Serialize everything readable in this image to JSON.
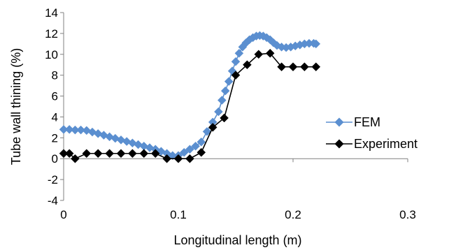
{
  "chart_data": {
    "type": "line",
    "title": "",
    "xlabel": "Longitudinal length (m)",
    "ylabel": "Tube wall thining (%)",
    "xlim": [
      0,
      0.3
    ],
    "ylim": [
      -4,
      14
    ],
    "xticks": [
      0,
      0.1,
      0.2,
      0.3
    ],
    "xtick_labels": [
      "0",
      "0.1",
      "0.2",
      "0.3"
    ],
    "yticks": [
      -4,
      -2,
      0,
      2,
      4,
      6,
      8,
      10,
      12,
      14
    ],
    "ytick_labels": [
      "-4",
      "-2",
      "0",
      "2",
      "4",
      "6",
      "8",
      "10",
      "12",
      "14"
    ],
    "grid": false,
    "legend_position": "right",
    "series": [
      {
        "name": "FEM",
        "color": "#5b8fd0",
        "marker": "diamond",
        "x": [
          0,
          0.005,
          0.01,
          0.015,
          0.02,
          0.025,
          0.03,
          0.035,
          0.04,
          0.045,
          0.05,
          0.055,
          0.06,
          0.065,
          0.07,
          0.075,
          0.08,
          0.085,
          0.09,
          0.095,
          0.1,
          0.105,
          0.11,
          0.115,
          0.12,
          0.125,
          0.13,
          0.135,
          0.138,
          0.141,
          0.144,
          0.147,
          0.15,
          0.153,
          0.156,
          0.159,
          0.162,
          0.165,
          0.168,
          0.171,
          0.174,
          0.177,
          0.18,
          0.183,
          0.186,
          0.19,
          0.194,
          0.198,
          0.202,
          0.206,
          0.21,
          0.214,
          0.218,
          0.22
        ],
        "y": [
          2.8,
          2.8,
          2.75,
          2.75,
          2.7,
          2.55,
          2.4,
          2.25,
          2.1,
          1.95,
          1.8,
          1.65,
          1.5,
          1.35,
          1.2,
          1.05,
          0.9,
          0.7,
          0.5,
          0.3,
          0.3,
          0.6,
          0.9,
          1.2,
          1.6,
          2.6,
          3.5,
          4.5,
          5.6,
          6.5,
          7.4,
          8.4,
          9.3,
          10.1,
          10.7,
          11.1,
          11.4,
          11.6,
          11.75,
          11.8,
          11.75,
          11.6,
          11.4,
          11.1,
          10.85,
          10.7,
          10.65,
          10.7,
          10.8,
          10.9,
          11.0,
          11.05,
          11.05,
          11.0
        ]
      },
      {
        "name": "Experiment",
        "color": "#000000",
        "marker": "diamond",
        "x": [
          0,
          0.005,
          0.01,
          0.02,
          0.03,
          0.04,
          0.05,
          0.06,
          0.07,
          0.08,
          0.09,
          0.1,
          0.11,
          0.12,
          0.13,
          0.14,
          0.15,
          0.16,
          0.17,
          0.18,
          0.19,
          0.2,
          0.21,
          0.22
        ],
        "y": [
          0.5,
          0.5,
          0.0,
          0.5,
          0.5,
          0.5,
          0.5,
          0.5,
          0.5,
          0.5,
          0.0,
          0.0,
          0.0,
          0.6,
          3.0,
          3.9,
          8.0,
          9.0,
          10.0,
          10.1,
          8.8,
          8.8,
          8.8,
          8.8
        ]
      }
    ]
  }
}
